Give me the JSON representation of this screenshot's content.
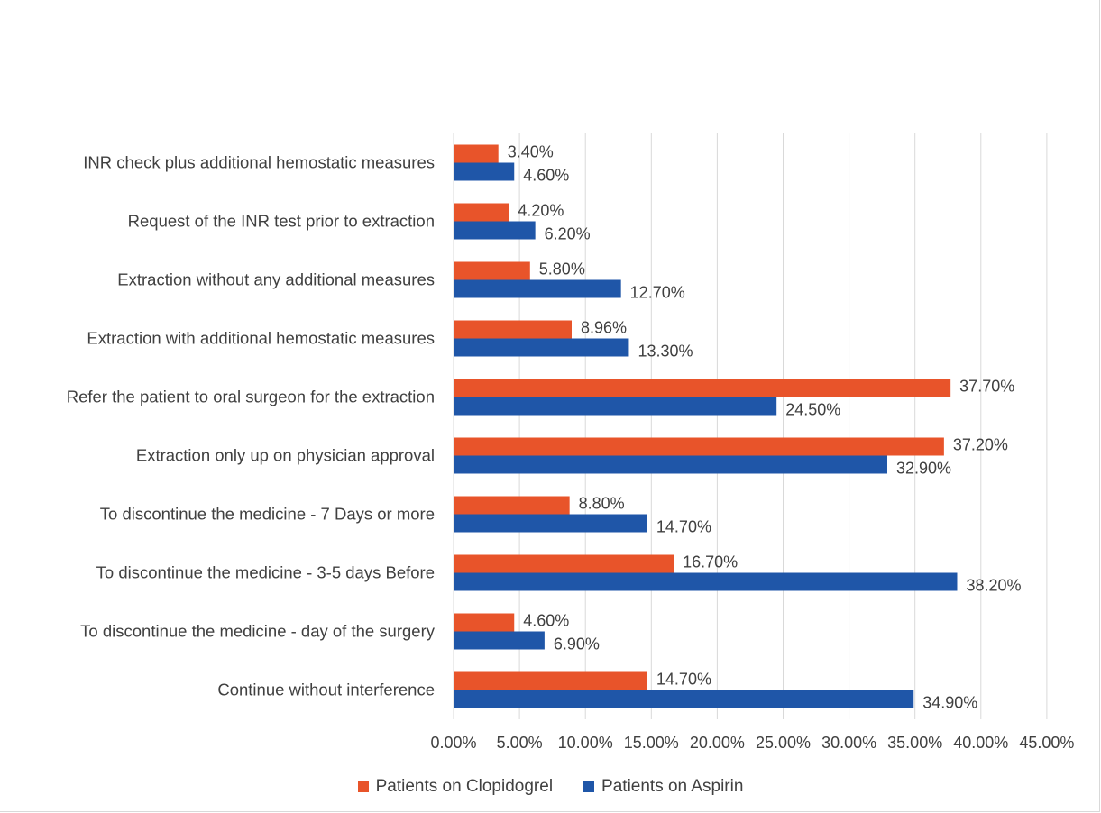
{
  "chart_data": {
    "type": "bar",
    "orientation": "horizontal",
    "categories": [
      "INR check plus additional hemostatic measures",
      "Request of the INR test prior to extraction",
      "Extraction without any additional measures",
      "Extraction with additional hemostatic measures",
      "Refer the patient to oral surgeon for the extraction",
      "Extraction only up on physician approval",
      "To discontinue the medicine - 7 Days or more",
      "To discontinue the medicine - 3-5 days Before",
      "To discontinue the medicine - day of the surgery",
      "Continue without interference"
    ],
    "series": [
      {
        "name": "Patients on Clopidogrel",
        "color": "#e8542a",
        "values": [
          3.4,
          4.2,
          5.8,
          8.96,
          37.7,
          37.2,
          8.8,
          16.7,
          4.6,
          14.7
        ],
        "labels": [
          "3.40%",
          "4.20%",
          "5.80%",
          "8.96%",
          "37.70%",
          "37.20%",
          "8.80%",
          "16.70%",
          "4.60%",
          "14.70%"
        ]
      },
      {
        "name": "Patients on Aspirin",
        "color": "#1f56a8",
        "values": [
          4.6,
          6.2,
          12.7,
          13.3,
          24.5,
          32.9,
          14.7,
          38.2,
          6.9,
          34.9
        ],
        "labels": [
          "4.60%",
          "6.20%",
          "12.70%",
          "13.30%",
          "24.50%",
          "32.90%",
          "14.70%",
          "38.20%",
          "6.90%",
          "34.90%"
        ]
      }
    ],
    "xlim": [
      0,
      45
    ],
    "xticks": [
      "0.00%",
      "5.00%",
      "10.00%",
      "15.00%",
      "20.00%",
      "25.00%",
      "30.00%",
      "35.00%",
      "40.00%",
      "45.00%"
    ],
    "grid": true,
    "legend_position": "bottom"
  }
}
